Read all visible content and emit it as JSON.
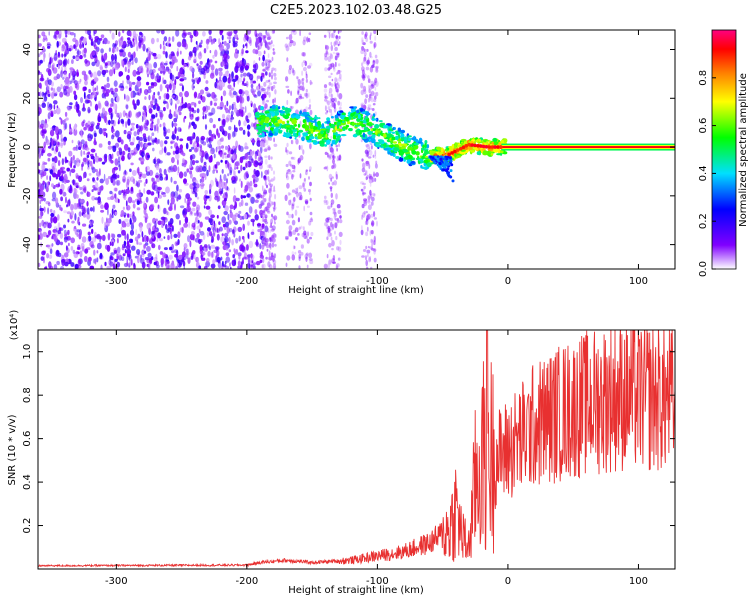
{
  "figure_title": "C2E5.2023.102.03.48.G25",
  "chart_data": [
    {
      "type": "heatmap",
      "xlabel": "Height of straight line (km)",
      "ylabel": "Frequency (Hz)",
      "xlim": [
        -360,
        128
      ],
      "ylim": [
        -50,
        48
      ],
      "x_ticks": [
        -300,
        -200,
        -100,
        0,
        100
      ],
      "y_ticks": [
        -40,
        -20,
        0,
        20,
        40
      ],
      "colorbar": {
        "label": "Normalized spectral amplitude",
        "range": [
          0,
          1
        ],
        "ticks": [
          "0.0",
          "0.2",
          "0.4",
          "0.6",
          "0.8"
        ],
        "tick_values": [
          0.0,
          0.2,
          0.4,
          0.6,
          0.8
        ],
        "stops": [
          "#ffffff",
          "#8000ff",
          "#0000ff",
          "#00e0ff",
          "#00ff00",
          "#ffff00",
          "#ff8000",
          "#ff0000",
          "#ff0080"
        ]
      },
      "ridge": {
        "x": [
          -190,
          -175,
          -160,
          -140,
          -120,
          -105,
          -90,
          -75,
          -60,
          -45,
          -30,
          -15,
          0,
          128
        ],
        "y": [
          10,
          11,
          9,
          5,
          11,
          8,
          3,
          -1,
          -4,
          -3,
          1,
          0,
          0,
          0
        ]
      },
      "carrier_line": {
        "x": [
          -5,
          128
        ],
        "y": 0
      }
    },
    {
      "type": "line",
      "xlabel": "Height of straight line (km)",
      "ylabel": "SNR (10 * v/v)",
      "y_exponent": "(x10⁴)",
      "xlim": [
        -360,
        128
      ],
      "ylim": [
        0,
        1.1
      ],
      "x_ticks": [
        -300,
        -200,
        -100,
        0,
        100
      ],
      "y_ticks": [
        "0.2",
        "0.4",
        "0.6",
        "0.8",
        "1.0"
      ],
      "y_tick_values": [
        0.2,
        0.4,
        0.6,
        0.8,
        1.0
      ],
      "series_color": "#e83030",
      "envelope": {
        "x": [
          -360,
          -200,
          -190,
          -170,
          -150,
          -120,
          -100,
          -80,
          -60,
          -45,
          -40,
          -35,
          -30,
          -25,
          -20,
          -15,
          -10,
          0,
          10,
          20,
          40,
          60,
          80,
          100,
          128
        ],
        "y": [
          0.015,
          0.018,
          0.03,
          0.04,
          0.03,
          0.04,
          0.06,
          0.08,
          0.12,
          0.18,
          0.28,
          0.15,
          0.1,
          0.4,
          0.5,
          0.55,
          0.5,
          0.55,
          0.6,
          0.66,
          0.72,
          0.76,
          0.8,
          0.8,
          0.78
        ]
      }
    }
  ]
}
